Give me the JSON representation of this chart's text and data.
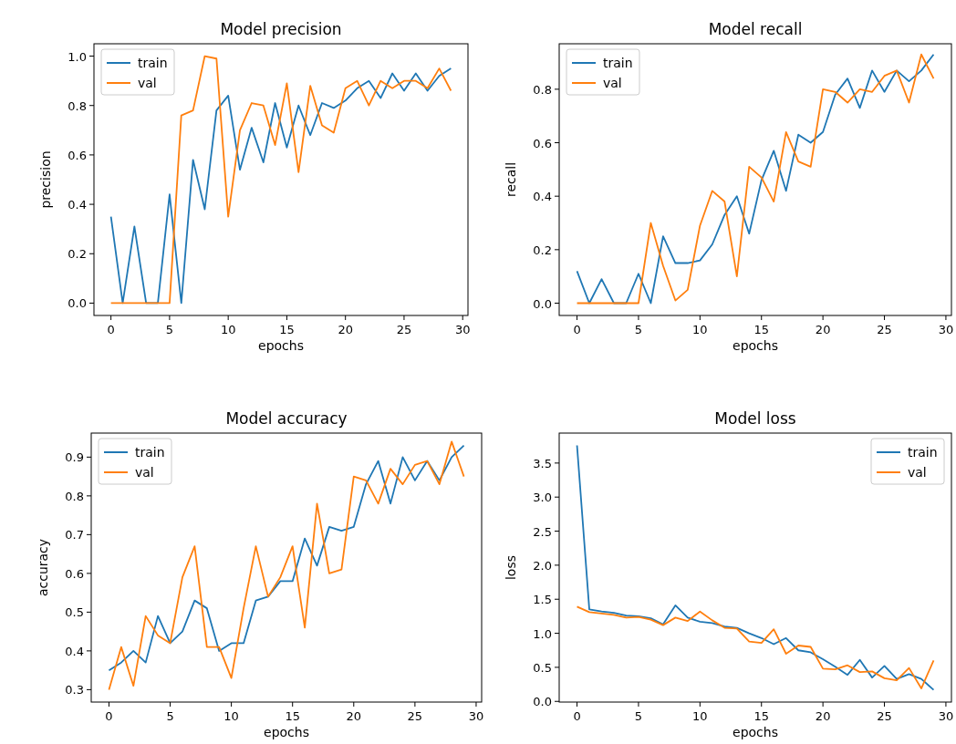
{
  "chart_data": [
    {
      "type": "line",
      "title": "Model precision",
      "xlabel": "epochs",
      "ylabel": "precision",
      "x": [
        0,
        1,
        2,
        3,
        4,
        5,
        6,
        7,
        8,
        9,
        10,
        11,
        12,
        13,
        14,
        15,
        16,
        17,
        18,
        19,
        20,
        21,
        22,
        23,
        24,
        25,
        26,
        27,
        28,
        29
      ],
      "xlim": [
        -1.45,
        30.45
      ],
      "xticks": [
        0,
        5,
        10,
        15,
        20,
        25,
        30
      ],
      "ylim": [
        -0.05,
        1.05
      ],
      "yticks": [
        {
          "value": 0,
          "label": "0.0"
        },
        {
          "value": 0.2,
          "label": "0.2"
        },
        {
          "value": 0.4,
          "label": "0.4"
        },
        {
          "value": 0.6,
          "label": "0.6"
        },
        {
          "value": 0.8,
          "label": "0.8"
        },
        {
          "value": 1,
          "label": "1.0"
        }
      ],
      "legend": "top left",
      "series": [
        {
          "name": "train",
          "color": "#1f77b4",
          "values": [
            0.35,
            0,
            0.31,
            0,
            0,
            0.44,
            0,
            0.58,
            0.38,
            0.78,
            0.84,
            0.54,
            0.71,
            0.57,
            0.81,
            0.63,
            0.8,
            0.68,
            0.81,
            0.79,
            0.82,
            0.87,
            0.9,
            0.83,
            0.93,
            0.86,
            0.93,
            0.86,
            0.92,
            0.95
          ]
        },
        {
          "name": "val",
          "color": "#ff7f0e",
          "values": [
            0,
            0,
            0,
            0,
            0,
            0,
            0.76,
            0.78,
            1.0,
            0.99,
            0.35,
            0.7,
            0.81,
            0.8,
            0.64,
            0.89,
            0.53,
            0.88,
            0.72,
            0.69,
            0.87,
            0.9,
            0.8,
            0.9,
            0.87,
            0.9,
            0.9,
            0.87,
            0.95,
            0.86
          ]
        }
      ]
    },
    {
      "type": "line",
      "title": "Model recall",
      "xlabel": "epochs",
      "ylabel": "recall",
      "x": [
        0,
        1,
        2,
        3,
        4,
        5,
        6,
        7,
        8,
        9,
        10,
        11,
        12,
        13,
        14,
        15,
        16,
        17,
        18,
        19,
        20,
        21,
        22,
        23,
        24,
        25,
        26,
        27,
        28,
        29
      ],
      "xlim": [
        -1.45,
        30.45
      ],
      "xticks": [
        0,
        5,
        10,
        15,
        20,
        25,
        30
      ],
      "ylim": [
        -0.046,
        0.97
      ],
      "yticks": [
        {
          "value": 0,
          "label": "0.0"
        },
        {
          "value": 0.2,
          "label": "0.2"
        },
        {
          "value": 0.4,
          "label": "0.4"
        },
        {
          "value": 0.6,
          "label": "0.6"
        },
        {
          "value": 0.8,
          "label": "0.8"
        }
      ],
      "legend": "top left",
      "series": [
        {
          "name": "train",
          "color": "#1f77b4",
          "values": [
            0.12,
            0,
            0.09,
            0,
            0,
            0.11,
            0,
            0.25,
            0.15,
            0.15,
            0.16,
            0.22,
            0.33,
            0.4,
            0.26,
            0.46,
            0.57,
            0.42,
            0.63,
            0.6,
            0.64,
            0.78,
            0.84,
            0.73,
            0.87,
            0.79,
            0.87,
            0.83,
            0.87,
            0.93
          ]
        },
        {
          "name": "val",
          "color": "#ff7f0e",
          "values": [
            0,
            0,
            0,
            0,
            0,
            0,
            0.3,
            0.14,
            0.01,
            0.05,
            0.29,
            0.42,
            0.38,
            0.1,
            0.51,
            0.47,
            0.38,
            0.64,
            0.53,
            0.51,
            0.8,
            0.79,
            0.75,
            0.8,
            0.79,
            0.85,
            0.87,
            0.75,
            0.93,
            0.84
          ]
        }
      ]
    },
    {
      "type": "line",
      "title": "Model accuracy",
      "xlabel": "epochs",
      "ylabel": "accuracy",
      "x": [
        0,
        1,
        2,
        3,
        4,
        5,
        6,
        7,
        8,
        9,
        10,
        11,
        12,
        13,
        14,
        15,
        16,
        17,
        18,
        19,
        20,
        21,
        22,
        23,
        24,
        25,
        26,
        27,
        28,
        29
      ],
      "xlim": [
        -1.45,
        30.45
      ],
      "xticks": [
        0,
        5,
        10,
        15,
        20,
        25,
        30
      ],
      "ylim": [
        0.268,
        0.962
      ],
      "yticks": [
        0.3,
        0.4,
        0.5,
        0.6,
        0.7,
        0.8,
        0.9
      ],
      "legend": "top left",
      "series": [
        {
          "name": "train",
          "color": "#1f77b4",
          "values": [
            0.35,
            0.37,
            0.4,
            0.37,
            0.49,
            0.42,
            0.45,
            0.53,
            0.51,
            0.4,
            0.42,
            0.42,
            0.53,
            0.54,
            0.58,
            0.58,
            0.69,
            0.62,
            0.72,
            0.71,
            0.72,
            0.83,
            0.89,
            0.78,
            0.9,
            0.84,
            0.89,
            0.84,
            0.9,
            0.93
          ]
        },
        {
          "name": "val",
          "color": "#ff7f0e",
          "values": [
            0.3,
            0.41,
            0.31,
            0.49,
            0.44,
            0.42,
            0.59,
            0.67,
            0.41,
            0.41,
            0.33,
            0.51,
            0.67,
            0.54,
            0.59,
            0.67,
            0.46,
            0.78,
            0.6,
            0.61,
            0.85,
            0.84,
            0.78,
            0.87,
            0.83,
            0.88,
            0.89,
            0.83,
            0.94,
            0.85
          ]
        }
      ]
    },
    {
      "type": "line",
      "title": "Model loss",
      "xlabel": "epochs",
      "ylabel": "loss",
      "x": [
        0,
        1,
        2,
        3,
        4,
        5,
        6,
        7,
        8,
        9,
        10,
        11,
        12,
        13,
        14,
        15,
        16,
        17,
        18,
        19,
        20,
        21,
        22,
        23,
        24,
        25,
        26,
        27,
        28,
        29
      ],
      "xlim": [
        -1.45,
        30.45
      ],
      "xticks": [
        0,
        5,
        10,
        15,
        20,
        25,
        30
      ],
      "ylim": [
        -0.01,
        3.94
      ],
      "yticks": [
        {
          "value": 0,
          "label": "0.0"
        },
        {
          "value": 0.5,
          "label": "0.5"
        },
        {
          "value": 1,
          "label": "1.0"
        },
        {
          "value": 1.5,
          "label": "1.5"
        },
        {
          "value": 2,
          "label": "2.0"
        },
        {
          "value": 2.5,
          "label": "2.5"
        },
        {
          "value": 3,
          "label": "3.0"
        },
        {
          "value": 3.5,
          "label": "3.5"
        }
      ],
      "legend": "top right",
      "series": [
        {
          "name": "train",
          "color": "#1f77b4",
          "values": [
            3.76,
            1.35,
            1.32,
            1.3,
            1.26,
            1.25,
            1.22,
            1.13,
            1.41,
            1.23,
            1.17,
            1.15,
            1.1,
            1.08,
            1.0,
            0.93,
            0.84,
            0.93,
            0.75,
            0.72,
            0.62,
            0.51,
            0.39,
            0.61,
            0.35,
            0.52,
            0.33,
            0.4,
            0.33,
            0.17
          ]
        },
        {
          "name": "val",
          "color": "#ff7f0e",
          "values": [
            1.39,
            1.31,
            1.29,
            1.27,
            1.23,
            1.24,
            1.2,
            1.12,
            1.23,
            1.18,
            1.32,
            1.19,
            1.08,
            1.07,
            0.88,
            0.86,
            1.06,
            0.7,
            0.82,
            0.8,
            0.48,
            0.47,
            0.53,
            0.43,
            0.44,
            0.34,
            0.31,
            0.49,
            0.19,
            0.6
          ]
        }
      ]
    }
  ]
}
